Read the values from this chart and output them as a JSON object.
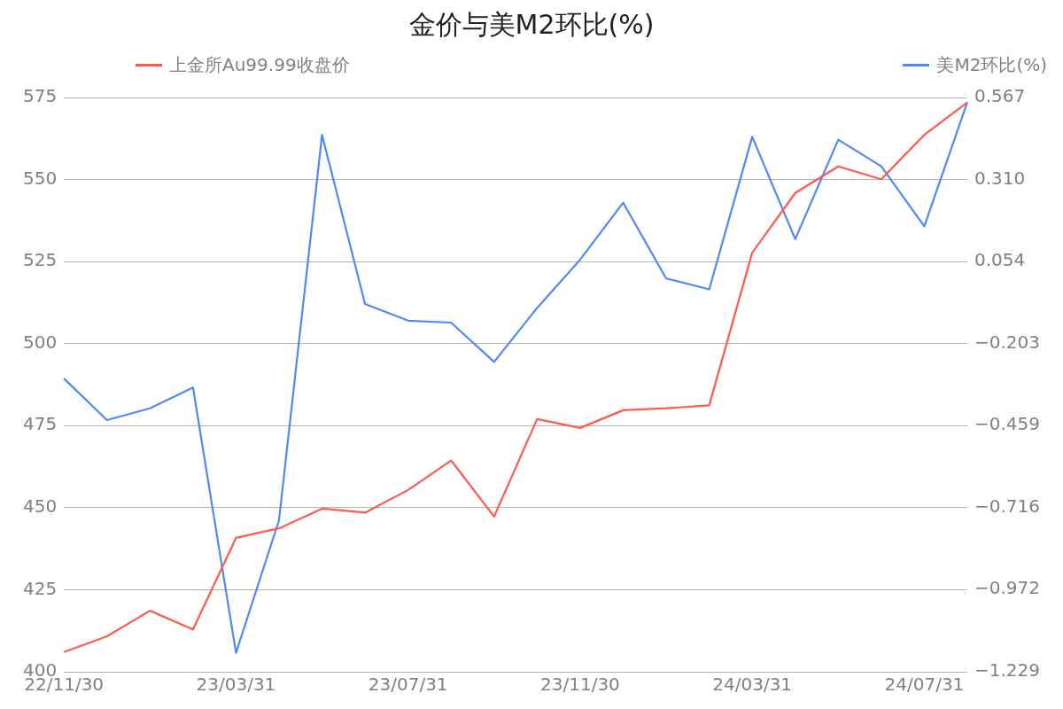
{
  "chart_data": {
    "type": "line",
    "title": "金价与美M2环比(%)",
    "categories": [
      "22/11/30",
      null,
      null,
      null,
      "23/03/31",
      null,
      null,
      null,
      "23/07/31",
      null,
      null,
      null,
      "23/11/30",
      null,
      null,
      null,
      "24/03/31",
      null,
      null,
      null,
      "24/07/31",
      null
    ],
    "series": [
      {
        "name": "上金所Au99.99收盘价",
        "color": "#ff5a4e",
        "values": [
          406,
          410.8,
          418.6,
          412.9,
          440.8,
          443.7,
          449.7,
          448.5,
          455.4,
          464.4,
          447.3,
          477.0,
          474.3,
          479.7,
          480.3,
          481.2,
          527.7,
          545.9,
          554.0,
          550.1,
          563.6,
          573.5
        ]
      },
      {
        "name": "美M2环比(%)",
        "color": "#4f88f7",
        "axis": "y2",
        "values": [
          -0.312,
          -0.442,
          -0.405,
          -0.34,
          -1.17,
          -0.755,
          0.45,
          -0.079,
          -0.131,
          -0.137,
          -0.26,
          -0.091,
          0.06,
          0.238,
          0.001,
          -0.033,
          0.444,
          0.124,
          0.435,
          0.352,
          0.164,
          0.552
        ]
      }
    ],
    "ylim": [
      400,
      575
    ],
    "yticks": [
      400,
      425,
      450,
      475,
      500,
      525,
      550,
      575
    ],
    "y2lim": [
      -1.229,
      0.567
    ],
    "y2ticks": [
      -1.229,
      -0.972,
      -0.716,
      -0.459,
      -0.203,
      0.054,
      {
        "value": 0.31,
        "label": "0.310"
      },
      0.567
    ],
    "grid": "y",
    "legend": "top",
    "marker": "none",
    "line_style": "solid"
  }
}
